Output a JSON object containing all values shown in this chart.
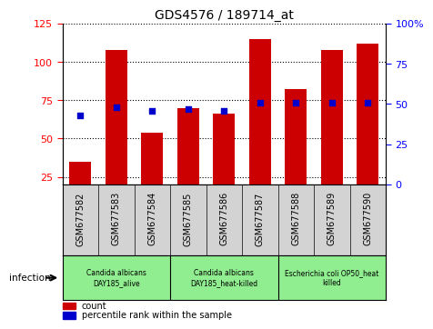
{
  "title": "GDS4576 / 189714_at",
  "samples": [
    "GSM677582",
    "GSM677583",
    "GSM677584",
    "GSM677585",
    "GSM677586",
    "GSM677587",
    "GSM677588",
    "GSM677589",
    "GSM677590"
  ],
  "count_values": [
    35,
    108,
    54,
    70,
    66,
    115,
    82,
    108,
    112
  ],
  "percentile_values": [
    43,
    48,
    46,
    47,
    46,
    51,
    51,
    51,
    51
  ],
  "ylim_left": [
    20,
    125
  ],
  "ylim_right": [
    0,
    100
  ],
  "yticks_left": [
    25,
    50,
    75,
    100,
    125
  ],
  "ytick_labels_left": [
    "25",
    "50",
    "75",
    "100",
    "125"
  ],
  "yticks_right": [
    0,
    25,
    50,
    75,
    100
  ],
  "ytick_labels_right": [
    "0",
    "25",
    "50",
    "75",
    "100%"
  ],
  "bar_color": "#cc0000",
  "dot_color": "#0000cc",
  "bar_width": 0.6,
  "groups": [
    {
      "label": "Candida albicans\nDAY185_alive",
      "start": 0,
      "end": 3
    },
    {
      "label": "Candida albicans\nDAY185_heat-killed",
      "start": 3,
      "end": 6
    },
    {
      "label": "Escherichia coli OP50_heat\nkilled",
      "start": 6,
      "end": 9
    }
  ],
  "group_color": "#90ee90",
  "tick_area_color": "#d3d3d3",
  "infection_label": "infection",
  "legend_count_label": "count",
  "legend_pct_label": "percentile rank within the sample"
}
